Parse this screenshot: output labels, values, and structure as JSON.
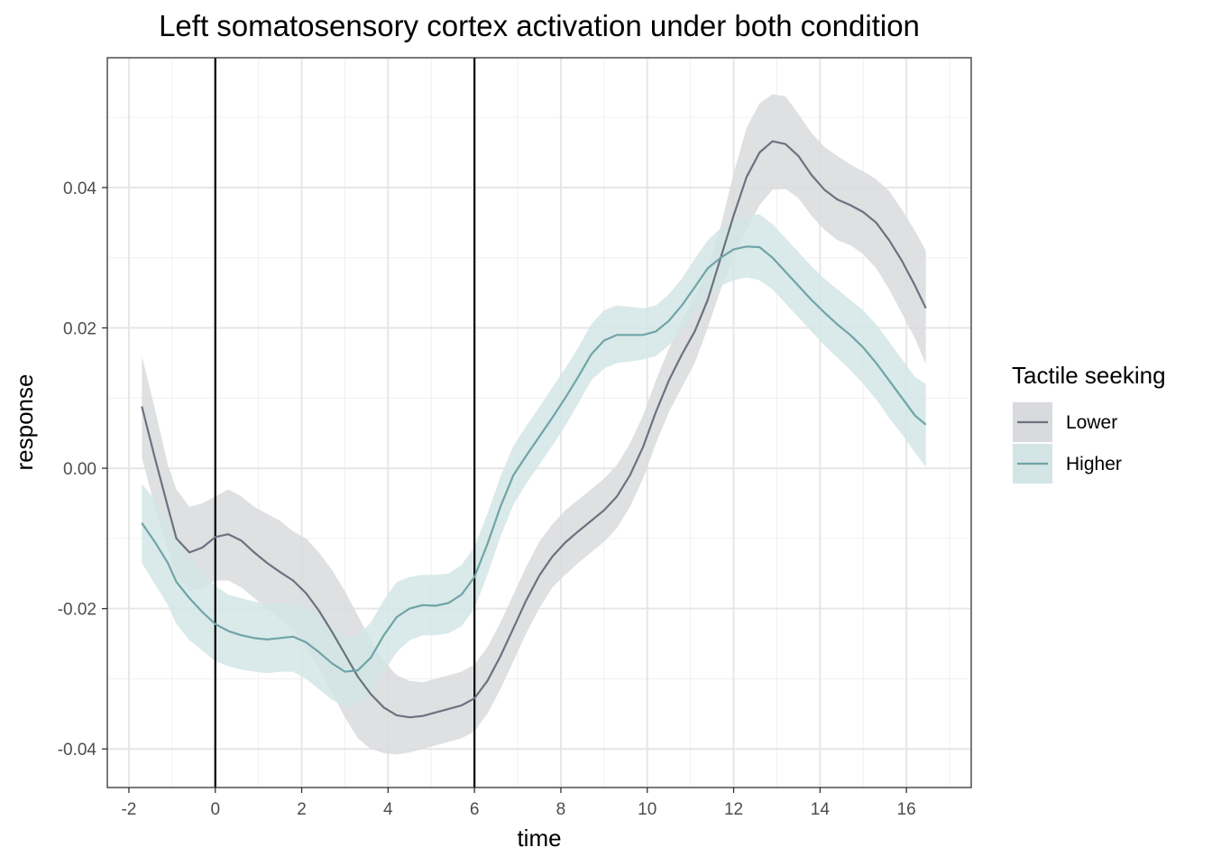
{
  "chart_data": {
    "type": "line",
    "title": "Left somatosensory cortex activation under both condition",
    "xlabel": "time",
    "ylabel": "response",
    "xlim": [
      -2.5,
      17.5
    ],
    "ylim": [
      -0.0455,
      0.0585
    ],
    "x_ticks": [
      -2,
      0,
      2,
      4,
      6,
      8,
      10,
      12,
      14,
      16
    ],
    "x_tick_labels": [
      "-2",
      "0",
      "2",
      "4",
      "6",
      "8",
      "10",
      "12",
      "14",
      "16"
    ],
    "y_ticks": [
      -0.04,
      -0.02,
      0.0,
      0.02,
      0.04
    ],
    "y_tick_labels": [
      "-0.04",
      "-0.02",
      "0.00",
      "0.02",
      "0.04"
    ],
    "grid": true,
    "vertical_lines": [
      0,
      6
    ],
    "legend": {
      "title": "Tactile seeking",
      "position": "right"
    },
    "x": [
      -1.7,
      -1.4,
      -1.1,
      -0.9,
      -0.6,
      -0.3,
      0,
      0.3,
      0.6,
      0.9,
      1.2,
      1.5,
      1.8,
      2.1,
      2.4,
      2.7,
      3.0,
      3.3,
      3.6,
      3.9,
      4.2,
      4.5,
      4.8,
      5.1,
      5.4,
      5.7,
      6.0,
      6.3,
      6.6,
      6.9,
      7.2,
      7.5,
      7.8,
      8.1,
      8.4,
      8.7,
      9.0,
      9.3,
      9.6,
      9.9,
      10.2,
      10.5,
      10.8,
      11.1,
      11.4,
      11.7,
      12.0,
      12.3,
      12.6,
      12.9,
      13.2,
      13.5,
      13.8,
      14.1,
      14.4,
      14.7,
      15.0,
      15.3,
      15.6,
      15.9,
      16.2,
      16.45
    ],
    "series": [
      {
        "name": "Lower",
        "color": "#6b7280",
        "band_color": "#d9dadd",
        "y": [
          0.0088,
          0.0015,
          -0.0055,
          -0.01,
          -0.012,
          -0.0113,
          -0.0098,
          -0.0094,
          -0.0103,
          -0.012,
          -0.0135,
          -0.0148,
          -0.016,
          -0.0178,
          -0.0203,
          -0.0233,
          -0.0265,
          -0.0297,
          -0.0322,
          -0.0341,
          -0.0352,
          -0.0355,
          -0.0353,
          -0.0348,
          -0.0343,
          -0.0338,
          -0.0328,
          -0.0303,
          -0.0268,
          -0.0228,
          -0.0188,
          -0.0153,
          -0.0126,
          -0.0106,
          -0.009,
          -0.0075,
          -0.006,
          -0.004,
          -0.001,
          0.003,
          0.008,
          0.0125,
          0.0162,
          0.0195,
          0.024,
          0.03,
          0.036,
          0.0415,
          0.045,
          0.0466,
          0.0462,
          0.0445,
          0.0418,
          0.0397,
          0.0383,
          0.0375,
          0.0365,
          0.035,
          0.0325,
          0.0295,
          0.026,
          0.0228
        ],
        "lower": [
          0.0015,
          -0.0055,
          -0.0115,
          -0.0155,
          -0.0175,
          -0.017,
          -0.016,
          -0.016,
          -0.017,
          -0.0185,
          -0.02,
          -0.0215,
          -0.023,
          -0.0255,
          -0.0285,
          -0.032,
          -0.0355,
          -0.0385,
          -0.04,
          -0.0406,
          -0.0408,
          -0.0405,
          -0.04,
          -0.0395,
          -0.039,
          -0.0385,
          -0.0375,
          -0.035,
          -0.0315,
          -0.0275,
          -0.0235,
          -0.02,
          -0.017,
          -0.0152,
          -0.0135,
          -0.012,
          -0.0105,
          -0.0085,
          -0.0055,
          -0.0015,
          0.0035,
          0.008,
          0.0115,
          0.015,
          0.02,
          0.0255,
          0.03,
          0.034,
          0.0375,
          0.0397,
          0.0398,
          0.0385,
          0.036,
          0.034,
          0.0325,
          0.0318,
          0.0305,
          0.0285,
          0.0255,
          0.022,
          0.0185,
          0.0148
        ],
        "upper": [
          0.016,
          0.0085,
          0.0005,
          -0.003,
          -0.0055,
          -0.005,
          -0.004,
          -0.003,
          -0.004,
          -0.0055,
          -0.0065,
          -0.0075,
          -0.009,
          -0.01,
          -0.012,
          -0.0145,
          -0.0175,
          -0.021,
          -0.0245,
          -0.0275,
          -0.0295,
          -0.0303,
          -0.0305,
          -0.03,
          -0.0295,
          -0.029,
          -0.028,
          -0.0255,
          -0.022,
          -0.018,
          -0.014,
          -0.0105,
          -0.008,
          -0.006,
          -0.0045,
          -0.003,
          -0.0015,
          0.0005,
          0.0035,
          0.0075,
          0.0125,
          0.017,
          0.021,
          0.0245,
          0.0285,
          0.0345,
          0.042,
          0.0485,
          0.052,
          0.0533,
          0.053,
          0.0505,
          0.0478,
          0.0458,
          0.0445,
          0.0433,
          0.0423,
          0.0412,
          0.0395,
          0.0368,
          0.0338,
          0.031
        ]
      },
      {
        "name": "Higher",
        "color": "#6fa4a8",
        "band_color": "#d3e5e5",
        "y": [
          -0.0078,
          -0.0105,
          -0.0135,
          -0.0162,
          -0.0185,
          -0.0205,
          -0.0222,
          -0.0232,
          -0.0238,
          -0.0242,
          -0.0244,
          -0.0242,
          -0.024,
          -0.0248,
          -0.0262,
          -0.0278,
          -0.029,
          -0.0288,
          -0.027,
          -0.0238,
          -0.0212,
          -0.02,
          -0.0195,
          -0.0196,
          -0.0192,
          -0.018,
          -0.0155,
          -0.0108,
          -0.0055,
          -0.001,
          0.0018,
          0.0045,
          0.0072,
          0.01,
          0.013,
          0.0162,
          0.0182,
          0.019,
          0.019,
          0.019,
          0.0195,
          0.021,
          0.0232,
          0.0258,
          0.0285,
          0.03,
          0.0312,
          0.0316,
          0.0315,
          0.03,
          0.028,
          0.026,
          0.024,
          0.0222,
          0.0205,
          0.019,
          0.0172,
          0.015,
          0.0125,
          0.01,
          0.0075,
          0.0062
        ],
        "lower": [
          -0.0135,
          -0.0165,
          -0.0195,
          -0.0222,
          -0.0245,
          -0.026,
          -0.0275,
          -0.0282,
          -0.0287,
          -0.029,
          -0.0292,
          -0.029,
          -0.029,
          -0.03,
          -0.0315,
          -0.033,
          -0.034,
          -0.0338,
          -0.032,
          -0.029,
          -0.0262,
          -0.0245,
          -0.0238,
          -0.0238,
          -0.0235,
          -0.0225,
          -0.02,
          -0.0152,
          -0.0098,
          -0.0052,
          -0.0022,
          0.0005,
          0.0032,
          0.006,
          0.0092,
          0.0125,
          0.0142,
          0.015,
          0.0152,
          0.0155,
          0.016,
          0.0175,
          0.0195,
          0.022,
          0.0245,
          0.026,
          0.0268,
          0.0272,
          0.0268,
          0.0255,
          0.0235,
          0.0215,
          0.0195,
          0.0175,
          0.0158,
          0.014,
          0.012,
          0.0098,
          0.0072,
          0.0048,
          0.0022,
          0.0002
        ],
        "upper": [
          -0.0022,
          -0.0045,
          -0.0075,
          -0.01,
          -0.0125,
          -0.0148,
          -0.0168,
          -0.018,
          -0.0185,
          -0.019,
          -0.0193,
          -0.0192,
          -0.019,
          -0.0195,
          -0.0208,
          -0.0225,
          -0.024,
          -0.0238,
          -0.022,
          -0.0188,
          -0.0162,
          -0.0155,
          -0.0152,
          -0.0152,
          -0.015,
          -0.0138,
          -0.0112,
          -0.0065,
          -0.0012,
          0.0032,
          0.006,
          0.0087,
          0.0115,
          0.0142,
          0.0172,
          0.0205,
          0.0225,
          0.0232,
          0.023,
          0.0228,
          0.0232,
          0.0248,
          0.027,
          0.0298,
          0.0325,
          0.0342,
          0.0355,
          0.036,
          0.0362,
          0.0348,
          0.0328,
          0.0308,
          0.0288,
          0.027,
          0.0255,
          0.024,
          0.0225,
          0.0205,
          0.018,
          0.0155,
          0.013,
          0.012
        ]
      }
    ]
  }
}
